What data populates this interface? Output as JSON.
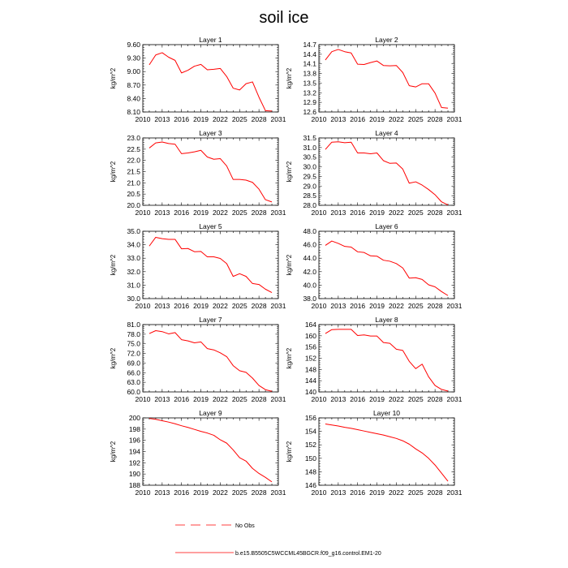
{
  "title": "soil ice",
  "series_color": "#ff0000",
  "legend": {
    "obs_label": "No Obs",
    "model_label": "b.e15.B5505C5WCCML45BGCR.f09_g16.control.EM1-20"
  },
  "chart_data": [
    {
      "type": "line",
      "title": "Layer 1",
      "ylabel": "kg/m^2",
      "xlim": [
        2010,
        2031
      ],
      "xticks": [
        "2010",
        "2013",
        "2016",
        "2019",
        "2022",
        "2025",
        "2028",
        "2031"
      ],
      "ylim": [
        8.1,
        9.6
      ],
      "yticks": [
        "8.10",
        "8.40",
        "8.70",
        "9.00",
        "9.30",
        "9.60"
      ],
      "x": [
        2011,
        2012,
        2013,
        2014,
        2015,
        2016,
        2017,
        2018,
        2019,
        2020,
        2021,
        2022,
        2023,
        2024,
        2025,
        2026,
        2027,
        2028,
        2029,
        2030
      ],
      "values": [
        9.15,
        9.37,
        9.42,
        9.32,
        9.25,
        8.97,
        9.03,
        9.12,
        9.16,
        9.04,
        9.05,
        9.07,
        8.89,
        8.63,
        8.59,
        8.73,
        8.77,
        8.43,
        8.13,
        8.12
      ]
    },
    {
      "type": "line",
      "title": "Layer 2",
      "ylabel": "kg/m^2",
      "xlim": [
        2010,
        2031
      ],
      "xticks": [
        "2010",
        "2013",
        "2016",
        "2019",
        "2022",
        "2025",
        "2028",
        "2031"
      ],
      "ylim": [
        12.6,
        14.7
      ],
      "yticks": [
        "12.6",
        "12.9",
        "13.2",
        "13.5",
        "13.8",
        "14.1",
        "14.4",
        "14.7"
      ],
      "x": [
        2011,
        2012,
        2013,
        2014,
        2015,
        2016,
        2017,
        2018,
        2019,
        2020,
        2021,
        2022,
        2023,
        2024,
        2025,
        2026,
        2027,
        2028,
        2029,
        2030
      ],
      "values": [
        14.22,
        14.48,
        14.55,
        14.48,
        14.44,
        14.09,
        14.08,
        14.14,
        14.19,
        14.05,
        14.04,
        14.05,
        13.83,
        13.42,
        13.38,
        13.48,
        13.48,
        13.19,
        12.74,
        12.72
      ]
    },
    {
      "type": "line",
      "title": "Layer 3",
      "ylabel": "kg/m^2",
      "xlim": [
        2010,
        2031
      ],
      "xticks": [
        "2010",
        "2013",
        "2016",
        "2019",
        "2022",
        "2025",
        "2028",
        "2031"
      ],
      "ylim": [
        20.0,
        23.0
      ],
      "yticks": [
        "20.0",
        "20.5",
        "21.0",
        "21.5",
        "22.0",
        "22.5",
        "23.0"
      ],
      "x": [
        2011,
        2012,
        2013,
        2014,
        2015,
        2016,
        2017,
        2018,
        2019,
        2020,
        2021,
        2022,
        2023,
        2024,
        2025,
        2026,
        2027,
        2028,
        2029,
        2030
      ],
      "values": [
        22.55,
        22.78,
        22.82,
        22.75,
        22.72,
        22.3,
        22.33,
        22.38,
        22.45,
        22.15,
        22.05,
        22.08,
        21.75,
        21.15,
        21.15,
        21.12,
        21.02,
        20.72,
        20.25,
        20.15
      ]
    },
    {
      "type": "line",
      "title": "Layer 4",
      "ylabel": "kg/m^2",
      "xlim": [
        2010,
        2031
      ],
      "xticks": [
        "2010",
        "2013",
        "2016",
        "2019",
        "2022",
        "2025",
        "2028",
        "2031"
      ],
      "ylim": [
        28.0,
        31.5
      ],
      "yticks": [
        "28.0",
        "28.5",
        "29.0",
        "29.5",
        "30.0",
        "30.5",
        "31.0",
        "31.5"
      ],
      "x": [
        2011,
        2012,
        2013,
        2014,
        2015,
        2016,
        2017,
        2018,
        2019,
        2020,
        2021,
        2022,
        2023,
        2024,
        2025,
        2026,
        2027,
        2028,
        2029,
        2030
      ],
      "values": [
        30.9,
        31.28,
        31.3,
        31.25,
        31.28,
        30.72,
        30.72,
        30.68,
        30.72,
        30.32,
        30.18,
        30.2,
        29.88,
        29.15,
        29.22,
        29.05,
        28.82,
        28.55,
        28.18,
        28.02
      ]
    },
    {
      "type": "line",
      "title": "Layer 5",
      "ylabel": "kg/m^2",
      "xlim": [
        2010,
        2031
      ],
      "xticks": [
        "2010",
        "2013",
        "2016",
        "2019",
        "2022",
        "2025",
        "2028",
        "2031"
      ],
      "ylim": [
        30.0,
        35.0
      ],
      "yticks": [
        "30.0",
        "31.0",
        "32.0",
        "33.0",
        "34.0",
        "35.0"
      ],
      "x": [
        2011,
        2012,
        2013,
        2014,
        2015,
        2016,
        2017,
        2018,
        2019,
        2020,
        2021,
        2022,
        2023,
        2024,
        2025,
        2026,
        2027,
        2028,
        2029,
        2030
      ],
      "values": [
        33.9,
        34.55,
        34.45,
        34.4,
        34.4,
        33.7,
        33.72,
        33.48,
        33.5,
        33.1,
        33.1,
        32.98,
        32.6,
        31.65,
        31.85,
        31.65,
        31.12,
        31.05,
        30.7,
        30.45
      ]
    },
    {
      "type": "line",
      "title": "Layer 6",
      "ylabel": "kg/m^2",
      "xlim": [
        2010,
        2031
      ],
      "xticks": [
        "2010",
        "2013",
        "2016",
        "2019",
        "2022",
        "2025",
        "2028",
        "2031"
      ],
      "ylim": [
        38.0,
        48.0
      ],
      "yticks": [
        "38.0",
        "40.0",
        "42.0",
        "44.0",
        "46.0",
        "48.0"
      ],
      "x": [
        2011,
        2012,
        2013,
        2014,
        2015,
        2016,
        2017,
        2018,
        2019,
        2020,
        2021,
        2022,
        2023,
        2024,
        2025,
        2026,
        2027,
        2028,
        2029,
        2030
      ],
      "values": [
        45.9,
        46.55,
        46.2,
        45.75,
        45.65,
        44.95,
        44.85,
        44.35,
        44.3,
        43.7,
        43.55,
        43.2,
        42.55,
        41.05,
        41.1,
        40.85,
        40.05,
        39.75,
        39.05,
        38.45
      ]
    },
    {
      "type": "line",
      "title": "Layer 7",
      "ylabel": "kg/m^2",
      "xlim": [
        2010,
        2031
      ],
      "xticks": [
        "2010",
        "2013",
        "2016",
        "2019",
        "2022",
        "2025",
        "2028",
        "2031"
      ],
      "ylim": [
        60.0,
        81.0
      ],
      "yticks": [
        "60.0",
        "63.0",
        "66.0",
        "69.0",
        "72.0",
        "75.0",
        "78.0",
        "81.0"
      ],
      "x": [
        2011,
        2012,
        2013,
        2014,
        2015,
        2016,
        2017,
        2018,
        2019,
        2020,
        2021,
        2022,
        2023,
        2024,
        2025,
        2026,
        2027,
        2028,
        2029,
        2030
      ],
      "values": [
        78.2,
        79.1,
        78.8,
        78.1,
        78.5,
        76.3,
        75.9,
        75.3,
        75.6,
        73.5,
        73.1,
        72.2,
        71.0,
        68.2,
        66.6,
        66.1,
        64.3,
        62.0,
        60.7,
        60.2
      ]
    },
    {
      "type": "line",
      "title": "Layer 8",
      "ylabel": "kg/m^2",
      "xlim": [
        2010,
        2031
      ],
      "xticks": [
        "2010",
        "2013",
        "2016",
        "2019",
        "2022",
        "2025",
        "2028",
        "2031"
      ],
      "ylim": [
        140,
        164
      ],
      "yticks": [
        "140",
        "144",
        "148",
        "152",
        "156",
        "160",
        "164"
      ],
      "x": [
        2011,
        2012,
        2013,
        2014,
        2015,
        2016,
        2017,
        2018,
        2019,
        2020,
        2021,
        2022,
        2023,
        2024,
        2025,
        2026,
        2027,
        2028,
        2029,
        2030
      ],
      "values": [
        160.8,
        162.2,
        162.3,
        162.3,
        162.3,
        160.1,
        160.3,
        159.9,
        159.9,
        157.6,
        157.3,
        155.2,
        154.8,
        150.9,
        148.3,
        149.9,
        145.4,
        142.3,
        140.9,
        140.3
      ]
    },
    {
      "type": "line",
      "title": "Layer 9",
      "ylabel": "kg/m^2",
      "xlim": [
        2010,
        2031
      ],
      "xticks": [
        "2010",
        "2013",
        "2016",
        "2019",
        "2022",
        "2025",
        "2028",
        "2031"
      ],
      "ylim": [
        188,
        200
      ],
      "yticks": [
        "188",
        "190",
        "192",
        "194",
        "196",
        "198",
        "200"
      ],
      "x": [
        2011,
        2012,
        2013,
        2014,
        2015,
        2016,
        2017,
        2018,
        2019,
        2020,
        2021,
        2022,
        2023,
        2024,
        2025,
        2026,
        2027,
        2028,
        2029,
        2030
      ],
      "values": [
        199.9,
        199.75,
        199.5,
        199.25,
        198.95,
        198.6,
        198.3,
        197.95,
        197.6,
        197.3,
        196.9,
        196.1,
        195.5,
        194.3,
        192.9,
        192.3,
        191.0,
        190.1,
        189.4,
        188.6
      ]
    },
    {
      "type": "line",
      "title": "Layer 10",
      "ylabel": "kg/m^2",
      "xlim": [
        2010,
        2031
      ],
      "xticks": [
        "2010",
        "2013",
        "2016",
        "2019",
        "2022",
        "2025",
        "2028",
        "2031"
      ],
      "ylim": [
        146,
        156
      ],
      "yticks": [
        "146",
        "148",
        "150",
        "152",
        "154",
        "156"
      ],
      "x": [
        2011,
        2012,
        2013,
        2014,
        2015,
        2016,
        2017,
        2018,
        2019,
        2020,
        2021,
        2022,
        2023,
        2024,
        2025,
        2026,
        2027,
        2028,
        2029,
        2030
      ],
      "values": [
        155.1,
        154.95,
        154.8,
        154.6,
        154.45,
        154.25,
        154.05,
        153.85,
        153.65,
        153.45,
        153.2,
        152.95,
        152.6,
        152.1,
        151.4,
        150.8,
        150.0,
        149.0,
        147.8,
        146.6
      ]
    }
  ]
}
